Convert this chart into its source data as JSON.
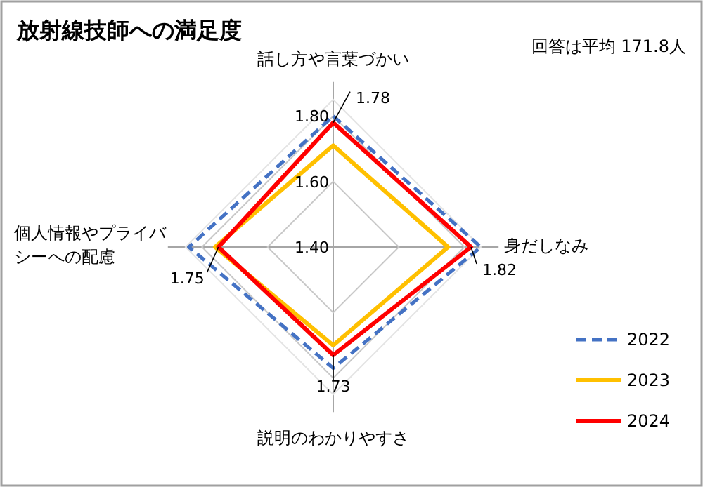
{
  "chart_data": {
    "type": "radar",
    "title": "放射線技師への満足度",
    "annotations": [
      "回答は平均 171.8人"
    ],
    "categories": [
      "話し方や言葉づかい",
      "身だしなみ",
      "説明のわかりやすさ",
      "個人情報やプライバシーへの配慮"
    ],
    "ylim": [
      1.4,
      1.85
    ],
    "yticks": [
      {
        "value": 1.4,
        "label": "1.40"
      },
      {
        "value": 1.6,
        "label": "1.60"
      },
      {
        "value": 1.8,
        "label": "1.80"
      }
    ],
    "grid": true,
    "legend": "right",
    "series": [
      {
        "name": "2022",
        "color": "#4472c4",
        "line_style": "dashed",
        "values": [
          1.8,
          1.85,
          1.77,
          1.84
        ]
      },
      {
        "name": "2023",
        "color": "#ffc000",
        "line_style": "solid",
        "values": [
          1.71,
          1.75,
          1.7,
          1.76
        ]
      },
      {
        "name": "2024",
        "color": "#ff0000",
        "line_style": "solid",
        "values": [
          1.78,
          1.82,
          1.73,
          1.75
        ],
        "value_labels": [
          "1.78",
          "1.82",
          "1.73",
          "1.75"
        ]
      }
    ]
  }
}
